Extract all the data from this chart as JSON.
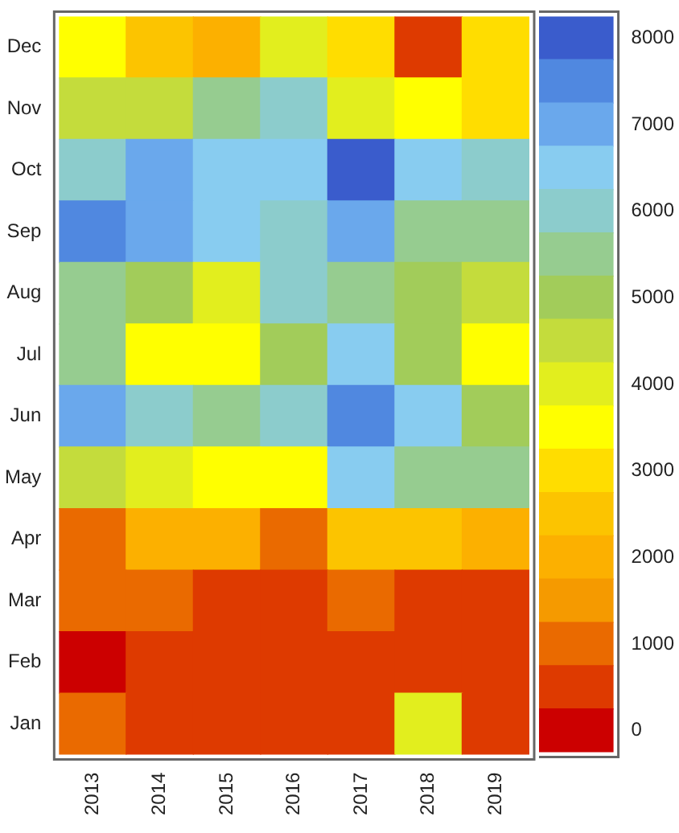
{
  "chart_data": {
    "type": "heatmap",
    "categories": [
      "2013",
      "2014",
      "2015",
      "2016",
      "2017",
      "2018",
      "2019"
    ],
    "y_categories": [
      "Dec",
      "Nov",
      "Oct",
      "Sep",
      "Aug",
      "Jul",
      "Jun",
      "May",
      "Apr",
      "Mar",
      "Feb",
      "Jan"
    ],
    "cells": [
      [
        3500,
        2500,
        2000,
        4000,
        3000,
        500,
        3000
      ],
      [
        4500,
        4500,
        5500,
        6000,
        4000,
        3500,
        3000
      ],
      [
        6000,
        7000,
        6500,
        6500,
        8000,
        6500,
        6000
      ],
      [
        7500,
        7000,
        6500,
        6000,
        7000,
        5500,
        5500
      ],
      [
        5500,
        5000,
        4000,
        6000,
        5500,
        5000,
        4500
      ],
      [
        5500,
        3500,
        3500,
        5000,
        6500,
        5000,
        3500
      ],
      [
        7000,
        6000,
        5500,
        6000,
        7500,
        6500,
        5000
      ],
      [
        4500,
        4000,
        3500,
        3500,
        6500,
        5500,
        5500
      ],
      [
        1000,
        2000,
        2000,
        1000,
        2500,
        2500,
        2000
      ],
      [
        1000,
        1000,
        500,
        500,
        1000,
        500,
        500
      ],
      [
        0,
        500,
        500,
        500,
        500,
        500,
        500
      ],
      [
        1000,
        500,
        500,
        500,
        500,
        4000,
        500
      ]
    ],
    "clim": [
      -250,
      8250
    ],
    "cticks": [
      0,
      1000,
      2000,
      3000,
      4000,
      5000,
      6000,
      7000,
      8000
    ]
  }
}
